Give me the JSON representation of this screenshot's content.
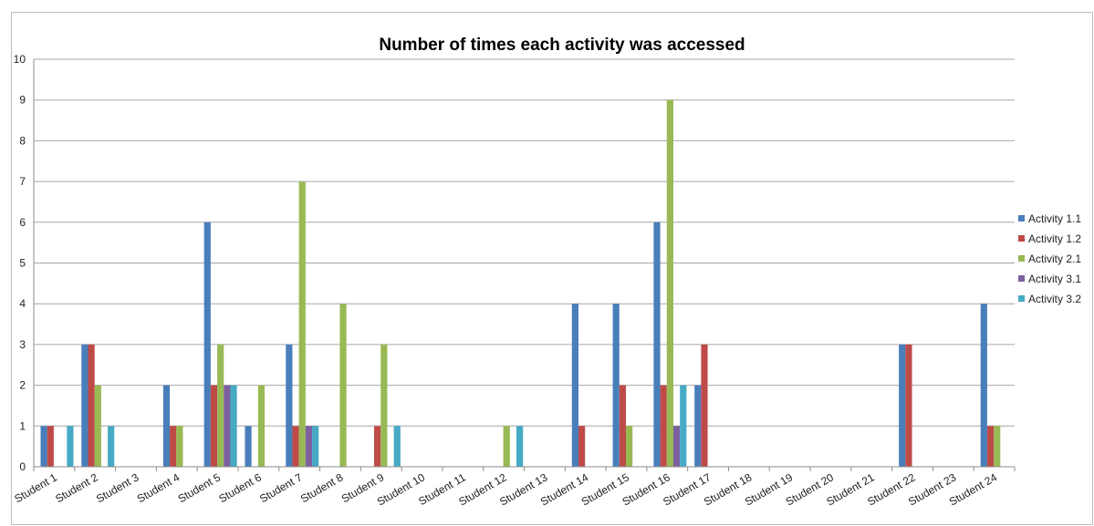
{
  "chart_data": {
    "type": "bar",
    "title": "Number of times each activity was accessed",
    "xlabel": "",
    "ylabel": "",
    "ylim": [
      0,
      10
    ],
    "yticks": [
      0,
      1,
      2,
      3,
      4,
      5,
      6,
      7,
      8,
      9,
      10
    ],
    "grid": true,
    "legend_position": "right",
    "categories": [
      "Student 1",
      "Student 2",
      "Student 3",
      "Student 4",
      "Student 5",
      "Student 6",
      "Student 7",
      "Student 8",
      "Student 9",
      "Student 10",
      "Student 11",
      "Student 12",
      "Student 13",
      "Student 14",
      "Student 15",
      "Student 16",
      "Student 17",
      "Student 18",
      "Student 19",
      "Student 20",
      "Student 21",
      "Student 22",
      "Student 23",
      "Student 24"
    ],
    "series": [
      {
        "name": "Activity 1.1",
        "color": "#4a7ebb",
        "values": [
          1,
          3,
          0,
          2,
          6,
          1,
          3,
          0,
          0,
          0,
          0,
          0,
          0,
          4,
          4,
          6,
          2,
          0,
          0,
          0,
          0,
          3,
          0,
          4
        ]
      },
      {
        "name": "Activity 1.2",
        "color": "#be4b48",
        "values": [
          1,
          3,
          0,
          1,
          2,
          0,
          1,
          0,
          1,
          0,
          0,
          0,
          0,
          1,
          2,
          2,
          3,
          0,
          0,
          0,
          0,
          3,
          0,
          1
        ]
      },
      {
        "name": "Activity 2.1",
        "color": "#98b954",
        "values": [
          0,
          2,
          0,
          1,
          3,
          2,
          7,
          4,
          3,
          0,
          0,
          1,
          0,
          0,
          1,
          9,
          0,
          0,
          0,
          0,
          0,
          0,
          0,
          1
        ]
      },
      {
        "name": "Activity 3.1",
        "color": "#7d60a0",
        "values": [
          0,
          0,
          0,
          0,
          2,
          0,
          1,
          0,
          0,
          0,
          0,
          0,
          0,
          0,
          0,
          1,
          0,
          0,
          0,
          0,
          0,
          0,
          0,
          0
        ]
      },
      {
        "name": "Activity 3.2",
        "color": "#46aac5",
        "values": [
          1,
          1,
          0,
          0,
          2,
          0,
          1,
          0,
          1,
          0,
          0,
          1,
          0,
          0,
          0,
          2,
          0,
          0,
          0,
          0,
          0,
          0,
          0,
          0
        ]
      }
    ]
  }
}
